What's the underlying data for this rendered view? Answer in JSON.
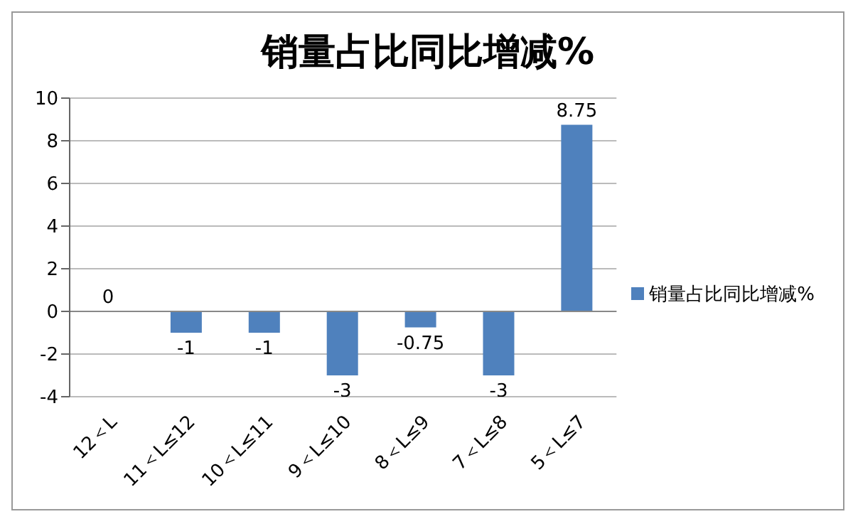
{
  "chart_data": {
    "type": "bar",
    "title": "销量占比同比增减%",
    "categories": [
      "12＜L",
      "11＜L≤12",
      "10＜L≤11",
      "9＜L≤10",
      "8＜L≤9",
      "7＜L≤8",
      "5＜L≤7"
    ],
    "series": [
      {
        "name": "销量占比同比增减%",
        "color": "#4f81bd",
        "values": [
          0,
          -1,
          -1,
          -3,
          -0.75,
          -3,
          8.75
        ]
      }
    ],
    "ylim": [
      -4,
      10
    ],
    "yticks": [
      -4,
      -2,
      0,
      2,
      4,
      6,
      8,
      10
    ],
    "grid": "y",
    "legend": "right",
    "data_labels": true
  }
}
